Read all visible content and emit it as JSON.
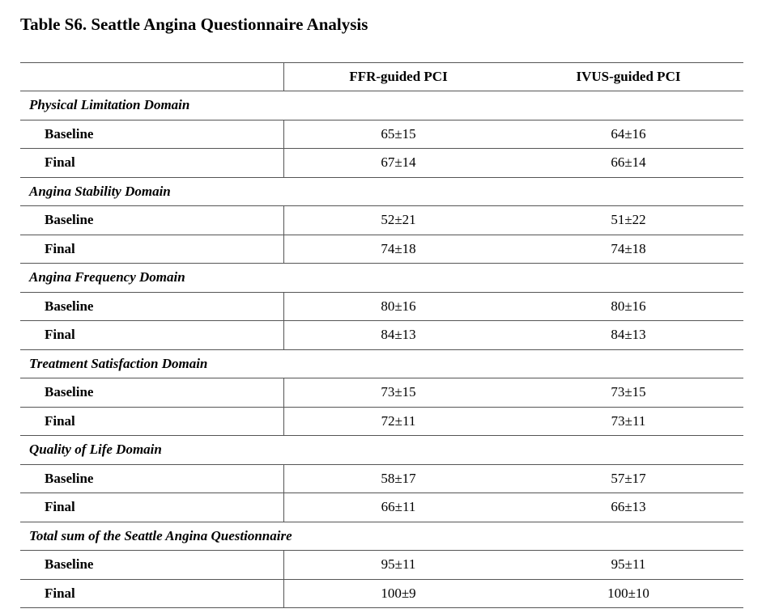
{
  "title": "Table S6. Seattle Angina Questionnaire Analysis",
  "columns": [
    "",
    "FFR-guided PCI",
    "IVUS-guided PCI"
  ],
  "sections": [
    {
      "label": "Physical Limitation Domain",
      "rows": [
        {
          "label": "Baseline",
          "ffr": "65±15",
          "ivus": "64±16"
        },
        {
          "label": "Final",
          "ffr": "67±14",
          "ivus": "66±14"
        }
      ]
    },
    {
      "label": "Angina Stability Domain",
      "rows": [
        {
          "label": "Baseline",
          "ffr": "52±21",
          "ivus": "51±22"
        },
        {
          "label": "Final",
          "ffr": "74±18",
          "ivus": "74±18"
        }
      ]
    },
    {
      "label": "Angina Frequency Domain",
      "rows": [
        {
          "label": "Baseline",
          "ffr": "80±16",
          "ivus": "80±16"
        },
        {
          "label": "Final",
          "ffr": "84±13",
          "ivus": "84±13"
        }
      ]
    },
    {
      "label": "Treatment Satisfaction Domain",
      "rows": [
        {
          "label": "Baseline",
          "ffr": "73±15",
          "ivus": "73±15"
        },
        {
          "label": "Final",
          "ffr": "72±11",
          "ivus": "73±11"
        }
      ]
    },
    {
      "label": "Quality of Life Domain",
      "rows": [
        {
          "label": "Baseline",
          "ffr": "58±17",
          "ivus": "57±17"
        },
        {
          "label": "Final",
          "ffr": "66±11",
          "ivus": "66±13"
        }
      ]
    },
    {
      "label": "Total sum of the Seattle Angina Questionnaire",
      "rows": [
        {
          "label": "Baseline",
          "ffr": "95±11",
          "ivus": "95±11"
        },
        {
          "label": "Final",
          "ffr": "100±9",
          "ivus": "100±10"
        }
      ]
    }
  ]
}
